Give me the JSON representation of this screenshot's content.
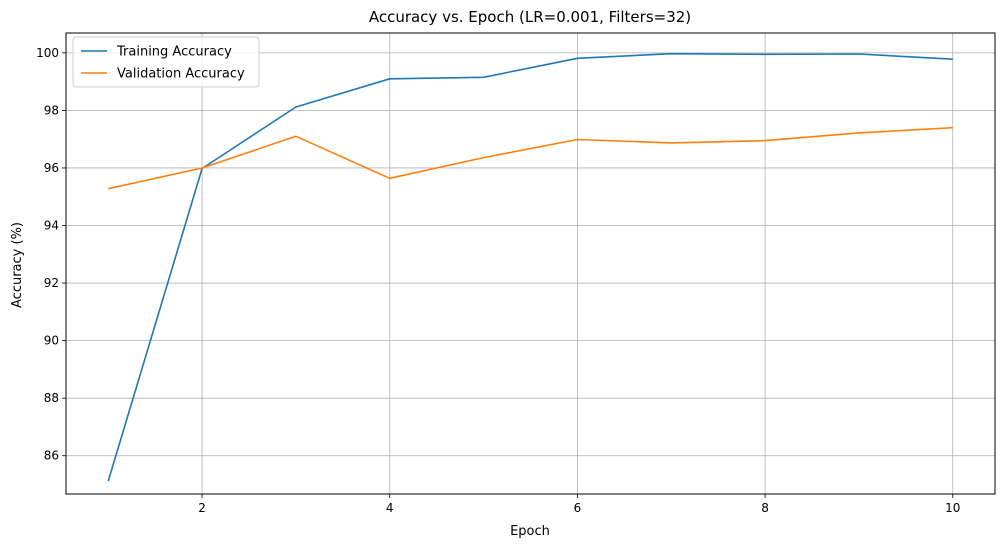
{
  "chart_data": {
    "type": "line",
    "title": "Accuracy vs. Epoch (LR=0.001, Filters=32)",
    "xlabel": "Epoch",
    "ylabel": "Accuracy (%)",
    "x": [
      1,
      2,
      3,
      4,
      5,
      6,
      7,
      8,
      9,
      10
    ],
    "xlim": [
      0.55,
      10.45
    ],
    "ylim": [
      84.67,
      100.69
    ],
    "xticks": [
      2,
      4,
      6,
      8,
      10
    ],
    "yticks": [
      86,
      88,
      90,
      92,
      94,
      96,
      98,
      100
    ],
    "grid": true,
    "legend_position": "upper-left",
    "series": [
      {
        "name": "Training Accuracy",
        "color": "#1f77b4",
        "values": [
          85.12,
          95.98,
          98.12,
          99.1,
          99.15,
          99.81,
          99.97,
          99.95,
          99.96,
          99.78
        ]
      },
      {
        "name": "Validation Accuracy",
        "color": "#ff7f0e",
        "values": [
          95.28,
          96.0,
          97.1,
          95.64,
          96.36,
          96.99,
          96.87,
          96.95,
          97.22,
          97.4
        ]
      }
    ]
  }
}
